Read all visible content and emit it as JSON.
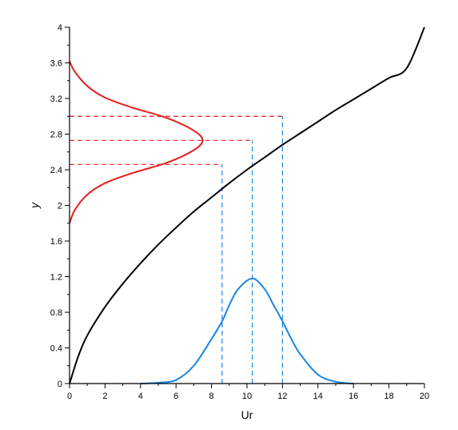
{
  "chart_data": {
    "type": "line",
    "title": "",
    "xlabel": "Ur",
    "ylabel": "y",
    "xlim": [
      0,
      20
    ],
    "ylim": [
      0,
      4
    ],
    "x_ticks": [
      "0",
      "2",
      "4",
      "6",
      "8",
      "10",
      "12",
      "14",
      "16",
      "18",
      "20"
    ],
    "y_ticks": [
      "0",
      "0.4",
      "0.8",
      "1.2",
      "1.6",
      "2",
      "2.4",
      "2.8",
      "3.2",
      "3.6",
      "4"
    ],
    "grid": false,
    "legend": "none",
    "series": [
      {
        "color": "#000000",
        "x": [
          0,
          0.5,
          1,
          2,
          3,
          4,
          5,
          6,
          7,
          8,
          9,
          10,
          11,
          12,
          13,
          14,
          15,
          16,
          17,
          18,
          19,
          20
        ],
        "y": [
          0,
          0.31,
          0.54,
          0.86,
          1.12,
          1.35,
          1.56,
          1.75,
          1.93,
          2.09,
          2.25,
          2.4,
          2.54,
          2.68,
          2.81,
          2.94,
          3.07,
          3.19,
          3.31,
          3.43,
          3.54,
          4.0
        ]
      },
      {
        "color": "#1a85e0",
        "x": [
          4,
          5,
          6,
          7,
          8,
          8.6,
          9,
          9.5,
          10.3,
          11,
          11.5,
          12,
          12.5,
          13,
          14,
          15,
          16
        ],
        "y": [
          0.0,
          0.01,
          0.04,
          0.2,
          0.5,
          0.7,
          0.88,
          1.06,
          1.18,
          1.06,
          0.88,
          0.7,
          0.5,
          0.33,
          0.1,
          0.02,
          0.0
        ]
      },
      {
        "color": "#e81e1e",
        "x": [
          0,
          0.3,
          1,
          2,
          3.5,
          5.5,
          7.0,
          7.5,
          7.0,
          5.5,
          3.5,
          2,
          1,
          0.3,
          0
        ],
        "y": [
          1.8,
          1.95,
          2.12,
          2.25,
          2.36,
          2.48,
          2.62,
          2.73,
          2.84,
          2.98,
          3.1,
          3.21,
          3.34,
          3.5,
          3.62
        ]
      }
    ],
    "reference_lines": {
      "color_h": "#e81e1e",
      "color_v": "#1a85e0",
      "horizontal": [
        {
          "y": 2.46,
          "x_end": 8.6
        },
        {
          "y": 2.73,
          "x_end": 10.3
        },
        {
          "y": 3.0,
          "x_end": 12.0
        }
      ],
      "vertical": [
        {
          "x": 8.6,
          "y_end": 2.46
        },
        {
          "x": 10.3,
          "y_end": 2.73
        },
        {
          "x": 12.0,
          "y_end": 3.0
        }
      ]
    }
  }
}
